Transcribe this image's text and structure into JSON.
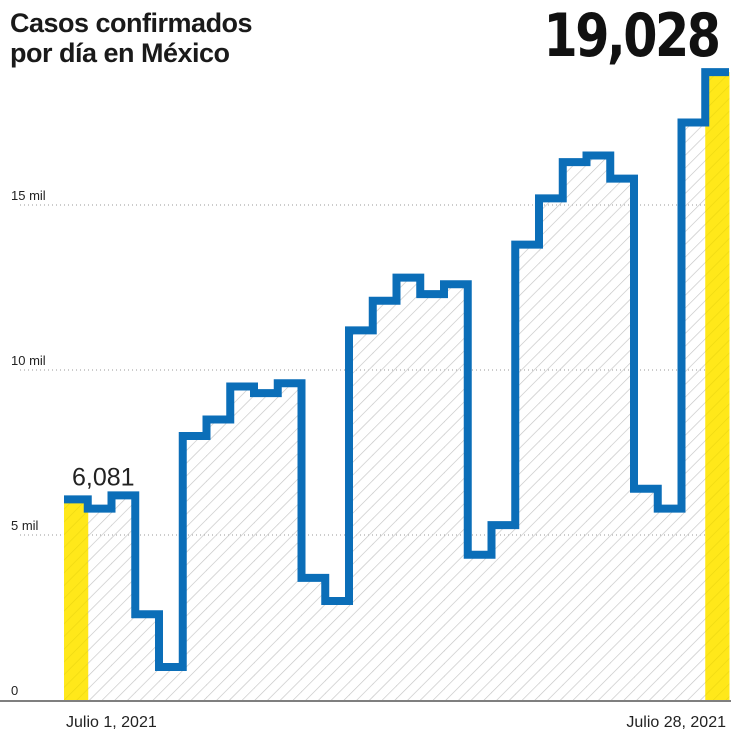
{
  "header": {
    "title_line1": "Casos confirmados",
    "title_line2": "por día en México",
    "highlight_value": "19,028"
  },
  "chart_data": {
    "type": "bar",
    "title": "Casos confirmados por día en México",
    "xlabel": "",
    "ylabel": "",
    "ylim": [
      0,
      20000
    ],
    "yticks": [
      {
        "value": 0,
        "label": "0"
      },
      {
        "value": 5000,
        "label": "5 mil"
      },
      {
        "value": 10000,
        "label": "10 mil"
      },
      {
        "value": 15000,
        "label": "15 mil"
      }
    ],
    "x_labels": {
      "first": "Julio 1, 2021",
      "last": "Julio 28, 2021"
    },
    "categories": [
      "1",
      "2",
      "3",
      "4",
      "5",
      "6",
      "7",
      "8",
      "9",
      "10",
      "11",
      "12",
      "13",
      "14",
      "15",
      "16",
      "17",
      "18",
      "19",
      "20",
      "21",
      "22",
      "23",
      "24",
      "25",
      "26",
      "27",
      "28"
    ],
    "values": [
      6081,
      5800,
      6200,
      2600,
      1000,
      8000,
      8500,
      9500,
      9300,
      9600,
      3700,
      3000,
      11200,
      12100,
      12800,
      12300,
      12600,
      4400,
      5300,
      13800,
      15200,
      16300,
      16500,
      15800,
      6400,
      5800,
      17500,
      19028
    ],
    "highlighted": [
      0,
      27
    ],
    "annotations": [
      {
        "index": 0,
        "text": "6,081"
      }
    ],
    "colors": {
      "line": "#0b6eb8",
      "highlight": "#ffe81a",
      "hatch": "#c4c4c4",
      "grid": "#9a9a9a",
      "text": "#222222"
    },
    "grid": true
  }
}
